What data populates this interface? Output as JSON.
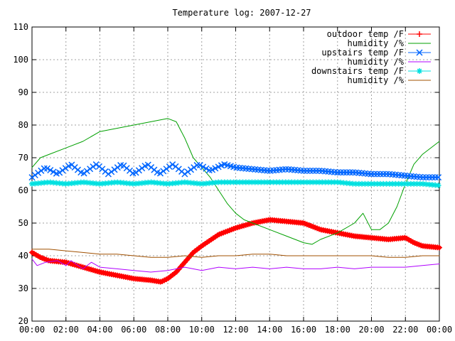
{
  "chart_data": {
    "type": "line",
    "title": "Temperature log: 2007-12-27",
    "xlabel": "",
    "ylabel": "",
    "xlim": [
      0,
      24
    ],
    "ylim": [
      20,
      110
    ],
    "grid": true,
    "legend_position": "top-right",
    "x_ticks": [
      "00:00",
      "02:00",
      "04:00",
      "06:00",
      "08:00",
      "10:00",
      "12:00",
      "14:00",
      "16:00",
      "18:00",
      "20:00",
      "22:00",
      "00:00"
    ],
    "y_ticks": [
      "20",
      "30",
      "40",
      "50",
      "60",
      "70",
      "80",
      "90",
      "100",
      "110"
    ],
    "series": [
      {
        "name": "outdoor temp /F",
        "color": "#ff0000",
        "marker": "plus",
        "x": [
          0,
          0.5,
          1,
          2,
          3,
          4,
          5,
          6,
          7,
          7.6,
          8,
          8.5,
          9,
          9.5,
          10,
          11,
          12,
          13,
          14,
          15,
          16,
          17,
          18,
          19,
          20,
          21,
          22,
          22.5,
          23,
          24
        ],
        "y": [
          41,
          39.5,
          38.5,
          38,
          36.5,
          35,
          34,
          33,
          32.5,
          32,
          33,
          35,
          38,
          41,
          43,
          46.5,
          48.5,
          50,
          51,
          50.5,
          50,
          48,
          47,
          46,
          45.5,
          45,
          45.5,
          44,
          43,
          42.5
        ]
      },
      {
        "name": "humidity /%",
        "color": "#00a000",
        "marker": "none",
        "x": [
          0,
          0.5,
          1,
          2,
          3,
          4,
          5,
          6,
          7,
          8,
          8.5,
          9,
          9.5,
          10,
          10.5,
          11,
          11.5,
          12,
          12.5,
          13,
          14,
          15,
          16,
          16.5,
          17,
          18,
          19,
          19.5,
          20,
          20.5,
          21,
          21.5,
          22,
          22.5,
          23,
          24
        ],
        "y": [
          67,
          70,
          71,
          73,
          75,
          78,
          79,
          80,
          81,
          82,
          81,
          76,
          70,
          67,
          64,
          60,
          56,
          53,
          51,
          50,
          48,
          46,
          44,
          43.5,
          45,
          47,
          50,
          53,
          48,
          48,
          50,
          55,
          62,
          68,
          71,
          75
        ]
      },
      {
        "name": "upstairs temp /F",
        "color": "#0066ff",
        "marker": "cross",
        "x": [
          0,
          0.8,
          1.5,
          2.3,
          3,
          3.8,
          4.5,
          5.3,
          6,
          6.8,
          7.5,
          8.3,
          9,
          9.8,
          10.5,
          11.3,
          12,
          13,
          14,
          15,
          16,
          17,
          18,
          19,
          20,
          21,
          22,
          23,
          24
        ],
        "y": [
          64,
          67,
          65,
          68,
          65,
          68,
          65,
          68,
          65,
          68,
          65,
          68,
          65,
          68,
          66,
          68,
          67,
          66.5,
          66,
          66.5,
          66,
          66,
          65.5,
          65.5,
          65,
          65,
          64.5,
          64,
          64
        ]
      },
      {
        "name": "humidity /%",
        "color": "#b000ff",
        "marker": "none",
        "x": [
          0,
          0.3,
          0.8,
          1.5,
          2,
          2.3,
          3,
          3.5,
          4,
          5,
          6,
          7,
          8,
          9,
          10,
          11,
          12,
          13,
          14,
          15,
          16,
          17,
          18,
          19,
          20,
          21,
          22,
          23,
          24
        ],
        "y": [
          39,
          37,
          38,
          38.5,
          37,
          38.5,
          36,
          38,
          36.5,
          36,
          35.5,
          35,
          35.5,
          36.5,
          35.5,
          36.5,
          36,
          36.5,
          36,
          36.5,
          36,
          36,
          36.5,
          36,
          36.5,
          36.5,
          36.5,
          37,
          37.5
        ]
      },
      {
        "name": "downstairs temp /F",
        "color": "#00e0e0",
        "marker": "star",
        "x": [
          0,
          1,
          2,
          3,
          4,
          5,
          6,
          7,
          8,
          9,
          10,
          11,
          12,
          13,
          14,
          15,
          16,
          17,
          18,
          19,
          20,
          21,
          22,
          23,
          24
        ],
        "y": [
          62,
          62.5,
          62,
          62.5,
          62,
          62.5,
          62,
          62.5,
          62,
          62.5,
          62,
          62.5,
          62.5,
          62.5,
          62.5,
          62.5,
          62.5,
          62.5,
          62.5,
          62,
          62,
          62,
          62,
          62,
          61.5
        ]
      },
      {
        "name": "humidity /%",
        "color": "#a05000",
        "marker": "none",
        "x": [
          0,
          1,
          2,
          3,
          4,
          5,
          6,
          7,
          8,
          9,
          10,
          11,
          12,
          13,
          14,
          15,
          16,
          17,
          18,
          19,
          20,
          21,
          22,
          23,
          24
        ],
        "y": [
          42,
          42,
          41.5,
          41,
          40.5,
          40.5,
          40,
          39.5,
          39.5,
          40,
          39.5,
          40,
          40,
          40.5,
          40.5,
          40,
          40,
          40,
          40,
          40,
          40,
          39.5,
          39.5,
          40,
          40
        ]
      }
    ]
  }
}
